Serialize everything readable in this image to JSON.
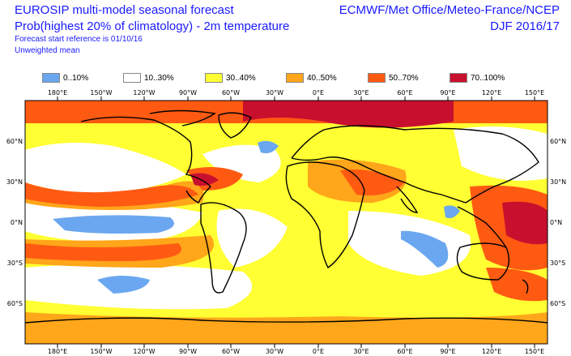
{
  "title": {
    "line1": "EUROSIP multi-model seasonal forecast",
    "line2": "Prob(highest 20% of climatology) - 2m temperature",
    "line3": "Forecast start reference is 01/10/16",
    "line4": "Unweighted mean",
    "right1": "ECMWF/Met Office/Meteo-France/NCEP",
    "right2": "DJF 2016/17"
  },
  "legend": [
    {
      "label": "0..10%",
      "color": "#6aa7f0"
    },
    {
      "label": "10..30%",
      "color": "#ffffff"
    },
    {
      "label": "30..40%",
      "color": "#ffff33"
    },
    {
      "label": "40..50%",
      "color": "#ffa61a"
    },
    {
      "label": "50..70%",
      "color": "#ff5a12"
    },
    {
      "label": "70..100%",
      "color": "#c8102e"
    }
  ],
  "axes": {
    "lon_labels": [
      "180°E",
      "150°W",
      "120°W",
      "90°W",
      "60°W",
      "30°W",
      "0°E",
      "30°E",
      "60°E",
      "90°E",
      "120°E",
      "150°E"
    ],
    "lat_labels": [
      "60°N",
      "30°N",
      "0°N",
      "30°S",
      "60°S"
    ]
  }
}
